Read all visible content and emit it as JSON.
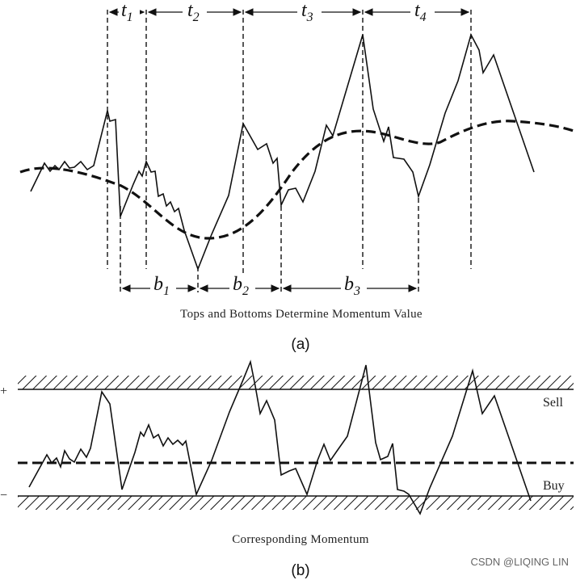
{
  "panel_a": {
    "interval_labels_top": [
      {
        "letter": "t",
        "sub": "1"
      },
      {
        "letter": "t",
        "sub": "2"
      },
      {
        "letter": "t",
        "sub": "3"
      },
      {
        "letter": "t",
        "sub": "4"
      }
    ],
    "interval_labels_bottom": [
      {
        "letter": "b",
        "sub": "1"
      },
      {
        "letter": "b",
        "sub": "2"
      },
      {
        "letter": "b",
        "sub": "3"
      }
    ],
    "caption": "Tops and Bottoms Determine Momentum Value",
    "tag": "(a)"
  },
  "panel_b": {
    "plus_sign": "+",
    "minus_sign": "−",
    "sell_label": "Sell",
    "buy_label": "Buy",
    "caption": "Corresponding Momentum",
    "tag": "(b)"
  },
  "watermark": "CSDN @LIQING LIN",
  "colors": {
    "ink": "#111111",
    "background": "#ffffff"
  }
}
